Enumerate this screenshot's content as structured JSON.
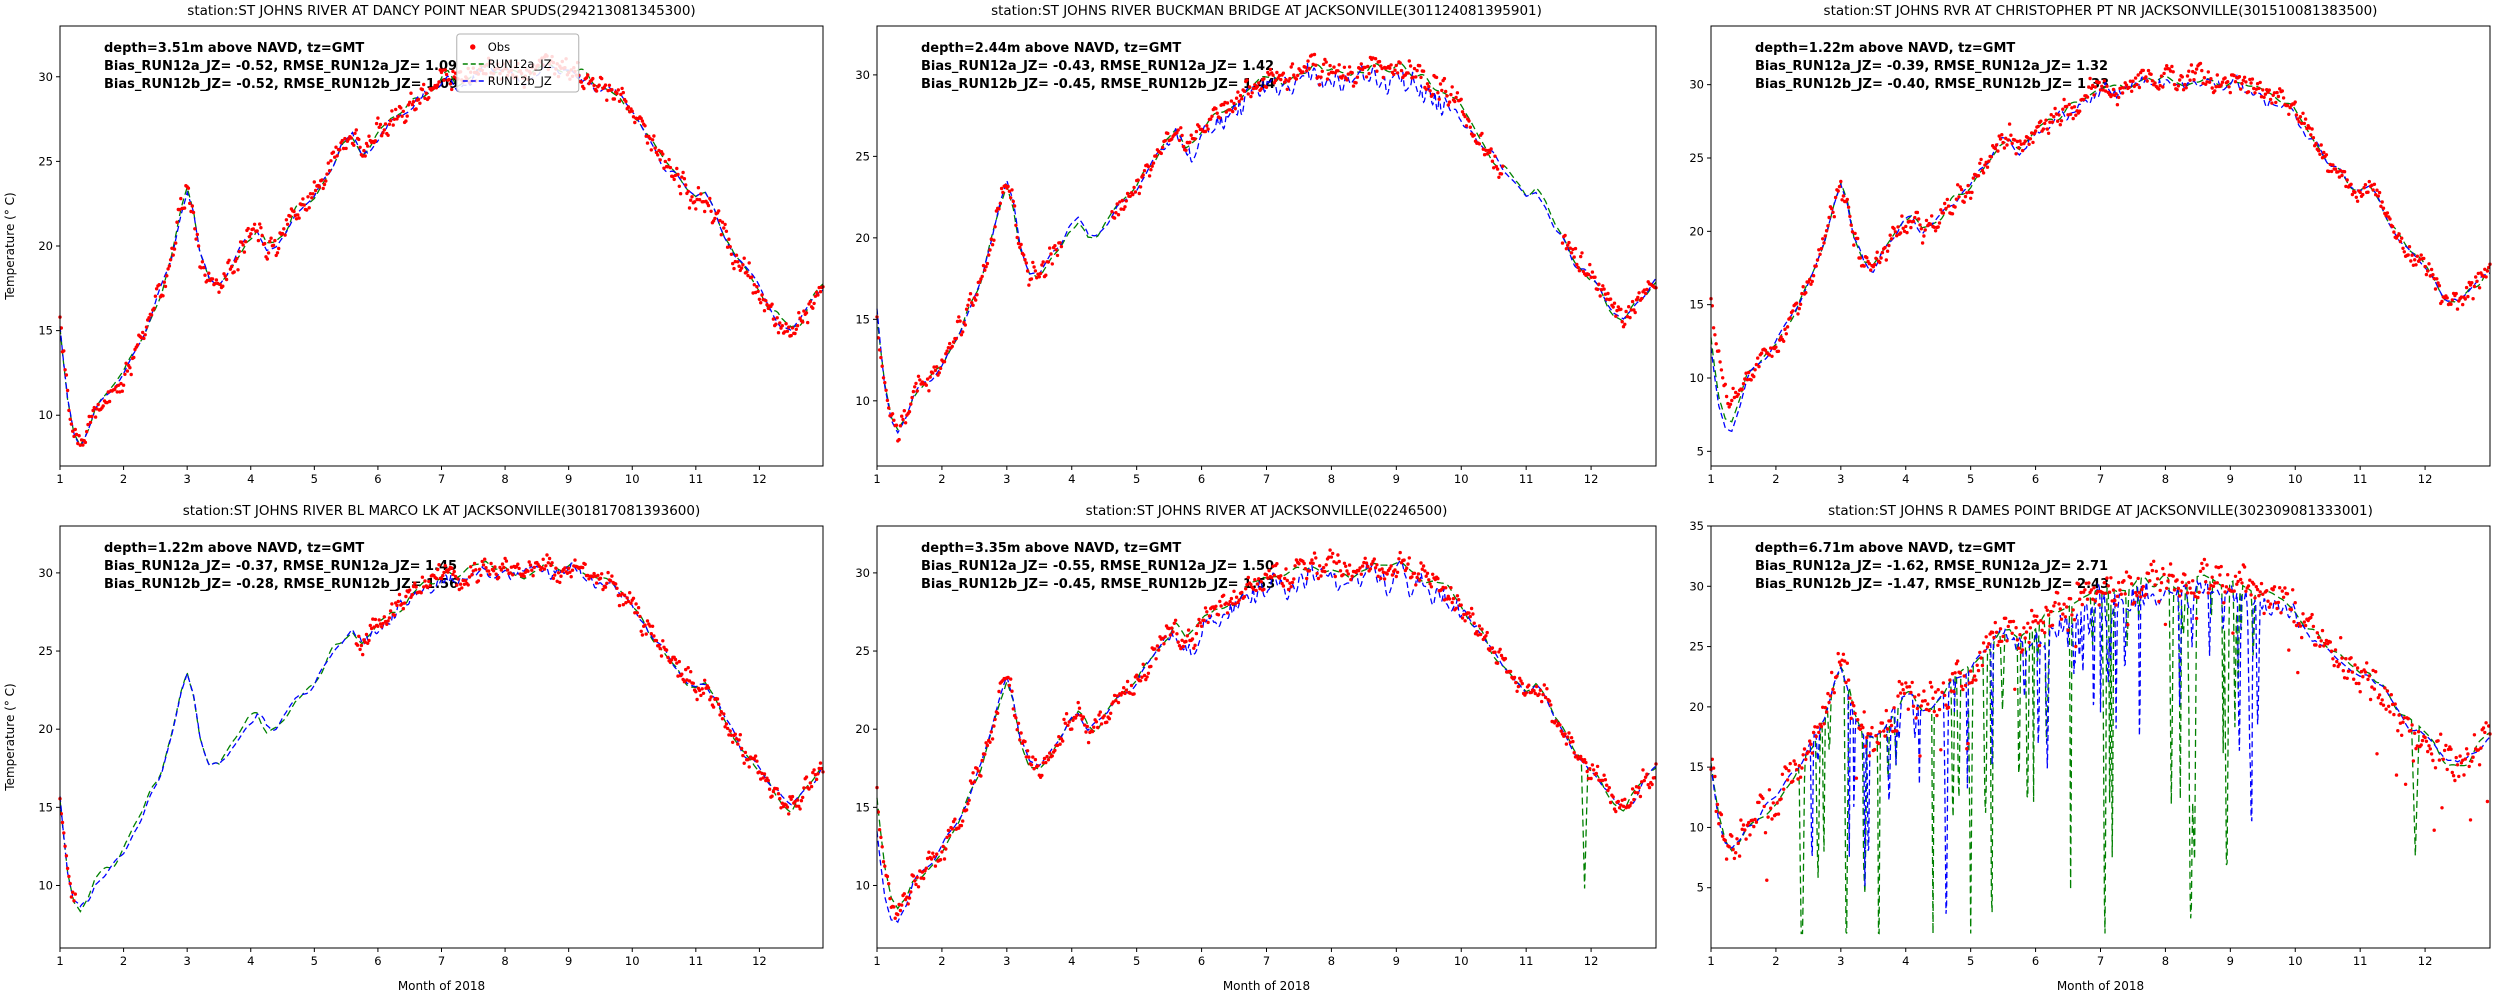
{
  "figure": {
    "background": "#ffffff",
    "ylabel": "Temperature (° C)",
    "xlabel": "Month of 2018",
    "legend": {
      "obs": "Obs",
      "run12a": "RUN12a_JZ",
      "run12b": "RUN12b_JZ"
    },
    "colors": {
      "obs": "#ff0000",
      "run12a": "#008000",
      "run12b": "#0000ff",
      "frame": "#000000",
      "legend_border": "#b0b0b0"
    }
  },
  "chart_data": {
    "type": "line",
    "x_axis": {
      "label": "Month of 2018",
      "ticks": [
        1,
        2,
        3,
        4,
        5,
        6,
        7,
        8,
        9,
        10,
        11,
        12
      ],
      "range": [
        1,
        13
      ]
    },
    "series_labels": [
      "Obs",
      "RUN12a_JZ",
      "RUN12b_JZ"
    ],
    "seasonal_curve_month_degC": [
      [
        1.0,
        15.5
      ],
      [
        1.05,
        13.5
      ],
      [
        1.12,
        11.0
      ],
      [
        1.22,
        9.0
      ],
      [
        1.32,
        8.3
      ],
      [
        1.45,
        9.2
      ],
      [
        1.55,
        10.3
      ],
      [
        1.7,
        10.8
      ],
      [
        1.85,
        11.5
      ],
      [
        2.0,
        12.3
      ],
      [
        2.15,
        13.5
      ],
      [
        2.3,
        14.5
      ],
      [
        2.45,
        16.0
      ],
      [
        2.6,
        17.5
      ],
      [
        2.75,
        19.5
      ],
      [
        2.9,
        22.0
      ],
      [
        3.0,
        23.3
      ],
      [
        3.1,
        22.0
      ],
      [
        3.2,
        19.5
      ],
      [
        3.35,
        17.8
      ],
      [
        3.5,
        17.5
      ],
      [
        3.65,
        18.5
      ],
      [
        3.8,
        19.5
      ],
      [
        3.95,
        20.5
      ],
      [
        4.1,
        21.0
      ],
      [
        4.25,
        20.0
      ],
      [
        4.4,
        20.3
      ],
      [
        4.55,
        21.0
      ],
      [
        4.7,
        22.0
      ],
      [
        4.85,
        22.5
      ],
      [
        5.0,
        23.0
      ],
      [
        5.15,
        24.0
      ],
      [
        5.3,
        25.0
      ],
      [
        5.45,
        26.0
      ],
      [
        5.6,
        26.5
      ],
      [
        5.75,
        25.6
      ],
      [
        5.9,
        26.2
      ],
      [
        6.05,
        27.0
      ],
      [
        6.2,
        27.6
      ],
      [
        6.35,
        27.9
      ],
      [
        6.5,
        28.3
      ],
      [
        6.65,
        28.8
      ],
      [
        6.8,
        29.3
      ],
      [
        6.95,
        29.8
      ],
      [
        7.1,
        30.1
      ],
      [
        7.25,
        29.6
      ],
      [
        7.4,
        29.9
      ],
      [
        7.55,
        30.3
      ],
      [
        7.7,
        30.6
      ],
      [
        7.85,
        30.2
      ],
      [
        8.0,
        30.5
      ],
      [
        8.15,
        30.2
      ],
      [
        8.3,
        30.0
      ],
      [
        8.45,
        30.4
      ],
      [
        8.6,
        30.6
      ],
      [
        8.75,
        30.3
      ],
      [
        8.9,
        30.1
      ],
      [
        9.05,
        30.5
      ],
      [
        9.2,
        30.2
      ],
      [
        9.35,
        29.8
      ],
      [
        9.5,
        29.5
      ],
      [
        9.65,
        29.2
      ],
      [
        9.8,
        28.8
      ],
      [
        9.95,
        28.3
      ],
      [
        10.1,
        27.3
      ],
      [
        10.25,
        26.3
      ],
      [
        10.4,
        25.4
      ],
      [
        10.55,
        24.6
      ],
      [
        10.7,
        24.0
      ],
      [
        10.85,
        23.2
      ],
      [
        11.0,
        22.6
      ],
      [
        11.15,
        22.9
      ],
      [
        11.3,
        22.0
      ],
      [
        11.45,
        20.6
      ],
      [
        11.6,
        19.5
      ],
      [
        11.75,
        18.6
      ],
      [
        11.9,
        18.0
      ],
      [
        12.05,
        17.2
      ],
      [
        12.2,
        16.2
      ],
      [
        12.35,
        15.4
      ],
      [
        12.5,
        15.0
      ],
      [
        12.65,
        15.6
      ],
      [
        12.8,
        16.5
      ],
      [
        12.95,
        17.3
      ],
      [
        13.0,
        17.5
      ]
    ],
    "panels": [
      {
        "title": "station:ST JOHNS RIVER AT DANCY POINT NEAR SPUDS(294213081345300)",
        "annotation": [
          "depth=3.51m above NAVD, tz=GMT",
          "Bias_RUN12a_JZ= -0.52, RMSE_RUN12a_JZ= 1.09",
          "Bias_RUN12b_JZ= -0.52, RMSE_RUN12b_JZ= 1.09"
        ],
        "ylim": [
          7,
          33
        ],
        "yticks": [
          10,
          15,
          20,
          25,
          30
        ],
        "show_legend": true,
        "obs_gaps": [],
        "style": {
          "seed": 11,
          "obs_jitter": 0.45,
          "obs_band": 0.55,
          "model_noise": 0.35,
          "blue_summer_extra": 0.4
        }
      },
      {
        "title": "station:ST JOHNS RIVER BUCKMAN BRIDGE AT JACKSONVILLE(301124081395901)",
        "annotation": [
          "depth=2.44m above NAVD, tz=GMT",
          "Bias_RUN12a_JZ= -0.43, RMSE_RUN12a_JZ= 1.42",
          "Bias_RUN12b_JZ= -0.45, RMSE_RUN12b_JZ= 1.44"
        ],
        "ylim": [
          6,
          33
        ],
        "yticks": [
          10,
          15,
          20,
          25,
          30
        ],
        "show_legend": false,
        "obs_gaps": [
          [
            3.85,
            4.6
          ],
          [
            10.65,
            11.55
          ]
        ],
        "style": {
          "seed": 22,
          "obs_jitter": 0.45,
          "obs_band": 0.55,
          "model_noise": 0.35,
          "blue_summer_extra": 1.3
        }
      },
      {
        "title": "station:ST JOHNS RVR AT CHRISTOPHER PT NR JACKSONVILLE(301510081383500)",
        "annotation": [
          "depth=1.22m above NAVD, tz=GMT",
          "Bias_RUN12a_JZ= -0.39, RMSE_RUN12a_JZ= 1.32",
          "Bias_RUN12b_JZ= -0.40, RMSE_RUN12b_JZ= 1.33"
        ],
        "ylim": [
          4,
          34
        ],
        "yticks": [
          5,
          10,
          15,
          20,
          25,
          30
        ],
        "show_legend": false,
        "obs_gaps": [],
        "style": {
          "seed": 33,
          "obs_jitter": 0.5,
          "obs_band": 0.6,
          "model_noise": 0.35,
          "blue_summer_extra": 0.6,
          "start_dip_green": 3.0,
          "start_dip_blue": 3.5
        }
      },
      {
        "title": "station:ST JOHNS RIVER BL MARCO LK AT JACKSONVILLE(301817081393600)",
        "annotation": [
          "depth=1.22m above NAVD, tz=GMT",
          "Bias_RUN12a_JZ= -0.37, RMSE_RUN12a_JZ= 1.45",
          "Bias_RUN12b_JZ= -0.28, RMSE_RUN12b_JZ= 1.56"
        ],
        "ylim": [
          6,
          33
        ],
        "yticks": [
          10,
          15,
          20,
          25,
          30
        ],
        "show_legend": false,
        "obs_gaps": [
          [
            1.25,
            5.65
          ]
        ],
        "style": {
          "seed": 44,
          "obs_jitter": 0.45,
          "obs_band": 0.55,
          "model_noise": 0.4,
          "blue_summer_extra": 0.6
        }
      },
      {
        "title": "station:ST JOHNS RIVER AT JACKSONVILLE(02246500)",
        "annotation": [
          "depth=3.35m above NAVD, tz=GMT",
          "Bias_RUN12a_JZ= -0.55, RMSE_RUN12a_JZ= 1.50",
          "Bias_RUN12b_JZ= -0.45, RMSE_RUN12b_JZ= 1.53"
        ],
        "ylim": [
          6,
          33
        ],
        "yticks": [
          10,
          15,
          20,
          25,
          30
        ],
        "show_legend": false,
        "obs_gaps": [],
        "style": {
          "seed": 55,
          "obs_jitter": 0.5,
          "obs_band": 0.6,
          "model_noise": 0.4,
          "blue_summer_extra": 1.5,
          "start_dip_blue": 2.0,
          "end_spikes": [
            {
              "t": 11.9,
              "w": 0.05,
              "d": 8,
              "series": "green"
            }
          ]
        }
      },
      {
        "title": "station:ST JOHNS R DAMES POINT BRIDGE AT JACKSONVILLE(302309081333001)",
        "annotation": [
          "depth=6.71m above NAVD, tz=GMT",
          "Bias_RUN12a_JZ= -1.62, RMSE_RUN12a_JZ= 2.71",
          "Bias_RUN12b_JZ= -1.47, RMSE_RUN12b_JZ= 2.43"
        ],
        "ylim": [
          0,
          35
        ],
        "yticks": [
          5,
          10,
          15,
          20,
          25,
          30,
          35
        ],
        "show_legend": false,
        "obs_gaps": [],
        "style": {
          "seed": 66,
          "obs_jitter": 1.2,
          "obs_band": 0.9,
          "model_noise": 0.5,
          "blue_summer_extra": 2.2,
          "obs_outliers": 0.03,
          "green_spikes": {
            "range": [
              1.8,
              9.6
            ],
            "count": 50,
            "max_depth": 24
          },
          "blue_spikes": {
            "range": [
              2.4,
              9.6
            ],
            "count": 42,
            "max_depth": 12
          },
          "end_spikes": [
            {
              "t": 11.85,
              "w": 0.06,
              "d": 11,
              "series": "green"
            }
          ]
        }
      }
    ]
  }
}
